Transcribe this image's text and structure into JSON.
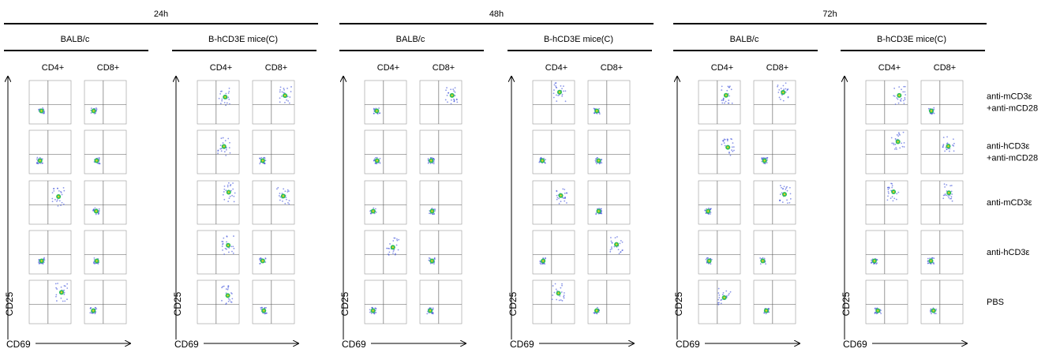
{
  "groups": [
    {
      "label": "24h",
      "strains": [
        {
          "label": "BALB/c"
        },
        {
          "label": "B-hCD3E mice(C)"
        }
      ]
    },
    {
      "label": "48h",
      "strains": [
        {
          "label": "BALB/c"
        },
        {
          "label": "B-hCD3E mice(C)"
        }
      ]
    },
    {
      "label": "72h",
      "strains": [
        {
          "label": "BALB/c"
        },
        {
          "label": "B-hCD3E mice(C)"
        }
      ]
    }
  ],
  "columns": [
    "CD4+",
    "CD8+"
  ],
  "y_axis_label": "CD25",
  "x_axis_label": "CD69",
  "rows": [
    [
      "anti-mCD3ε",
      "+anti-mCD28"
    ],
    [
      "anti-hCD3ε",
      "+anti-mCD28"
    ],
    [
      "anti-mCD3ε"
    ],
    [
      "anti-hCD3ε"
    ],
    [
      "PBS"
    ]
  ]
}
